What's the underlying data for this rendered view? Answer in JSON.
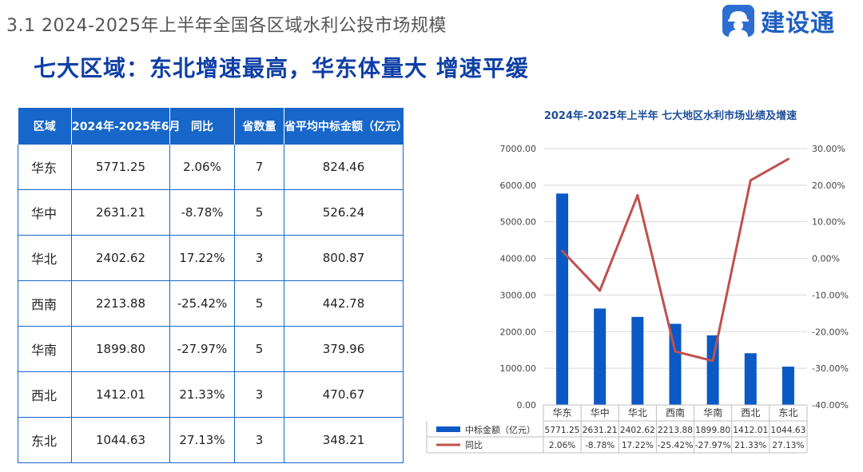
{
  "header": {
    "section_title": "3.1  2024-2025年上半年全国各区域水利公投市场规模",
    "headline": "七大区域：东北增速最高，华东体量大 增速平缓"
  },
  "logo": {
    "text": "建设通",
    "icon": "hardhat-person-icon",
    "color": "#2c6fd1"
  },
  "table": {
    "headers": [
      "区域",
      "2024年-2025年6月",
      "同比",
      "省数量",
      "省平均中标金额（亿元）"
    ],
    "rows": [
      [
        "华东",
        "5771.25",
        "2.06%",
        "7",
        "824.46"
      ],
      [
        "华中",
        "2631.21",
        "-8.78%",
        "5",
        "526.24"
      ],
      [
        "华北",
        "2402.62",
        "17.22%",
        "3",
        "800.87"
      ],
      [
        "西南",
        "2213.88",
        "-25.42%",
        "5",
        "442.78"
      ],
      [
        "华南",
        "1899.80",
        "-27.97%",
        "5",
        "379.96"
      ],
      [
        "西北",
        "1412.01",
        "21.33%",
        "3",
        "470.67"
      ],
      [
        "东北",
        "1044.63",
        "27.13%",
        "3",
        "348.21"
      ]
    ],
    "header_color": "#1766c9"
  },
  "chart_data": {
    "type": "bar",
    "title": "2024年-2025年上半年 七大地区水利市场业绩及增速",
    "categories": [
      "华东",
      "华中",
      "华北",
      "西南",
      "华南",
      "西北",
      "东北"
    ],
    "series": [
      {
        "name": "中标金额（亿元）",
        "kind": "bar",
        "axis": "left",
        "color": "#0a59c4",
        "values": [
          5771.25,
          2631.21,
          2402.62,
          2213.88,
          1899.8,
          1412.01,
          1044.63
        ],
        "labels": [
          "5771.25",
          "2631.21",
          "2402.62",
          "2213.88",
          "1899.80",
          "1412.01",
          "1044.63"
        ]
      },
      {
        "name": "同比",
        "kind": "line",
        "axis": "right",
        "color": "#c0504d",
        "values": [
          2.06,
          -8.78,
          17.22,
          -25.42,
          -27.97,
          21.33,
          27.13
        ],
        "labels": [
          "2.06%",
          "-8.78%",
          "17.22%",
          "-25.42%",
          "-27.97%",
          "21.33%",
          "27.13%"
        ]
      }
    ],
    "y_left": {
      "min": 0,
      "max": 7000,
      "step": 1000,
      "ticks": [
        "0.00",
        "1000.00",
        "2000.00",
        "3000.00",
        "4000.00",
        "5000.00",
        "6000.00",
        "7000.00"
      ]
    },
    "y_right": {
      "min": -40,
      "max": 30,
      "step": 10,
      "ticks": [
        "-40.00%",
        "-30.00%",
        "-20.00%",
        "-10.00%",
        "0.00%",
        "10.00%",
        "20.00%",
        "30.00%"
      ]
    },
    "grid": true,
    "legend": "data-table-bottom"
  }
}
